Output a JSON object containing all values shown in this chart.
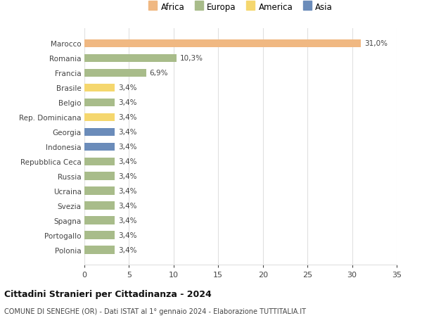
{
  "categories": [
    "Polonia",
    "Portogallo",
    "Spagna",
    "Svezia",
    "Ucraina",
    "Russia",
    "Repubblica Ceca",
    "Indonesia",
    "Georgia",
    "Rep. Dominicana",
    "Belgio",
    "Brasile",
    "Francia",
    "Romania",
    "Marocco"
  ],
  "values": [
    3.4,
    3.4,
    3.4,
    3.4,
    3.4,
    3.4,
    3.4,
    3.4,
    3.4,
    3.4,
    3.4,
    3.4,
    6.9,
    10.3,
    31.0
  ],
  "colors": [
    "#a8bc8a",
    "#a8bc8a",
    "#a8bc8a",
    "#a8bc8a",
    "#a8bc8a",
    "#a8bc8a",
    "#a8bc8a",
    "#6b8cba",
    "#6b8cba",
    "#f5d76e",
    "#a8bc8a",
    "#f5d76e",
    "#a8bc8a",
    "#a8bc8a",
    "#f0b882"
  ],
  "labels": [
    "3,4%",
    "3,4%",
    "3,4%",
    "3,4%",
    "3,4%",
    "3,4%",
    "3,4%",
    "3,4%",
    "3,4%",
    "3,4%",
    "3,4%",
    "3,4%",
    "6,9%",
    "10,3%",
    "31,0%"
  ],
  "title": "Cittadini Stranieri per Cittadinanza - 2024",
  "subtitle": "COMUNE DI SENEGHE (OR) - Dati ISTAT al 1° gennaio 2024 - Elaborazione TUTTITALIA.IT",
  "xlim": [
    0,
    35
  ],
  "xticks": [
    0,
    5,
    10,
    15,
    20,
    25,
    30,
    35
  ],
  "legend_labels": [
    "Africa",
    "Europa",
    "America",
    "Asia"
  ],
  "legend_colors": [
    "#f0b882",
    "#a8bc8a",
    "#f5d76e",
    "#6b8cba"
  ],
  "background_color": "#ffffff",
  "grid_color": "#e0e0e0"
}
